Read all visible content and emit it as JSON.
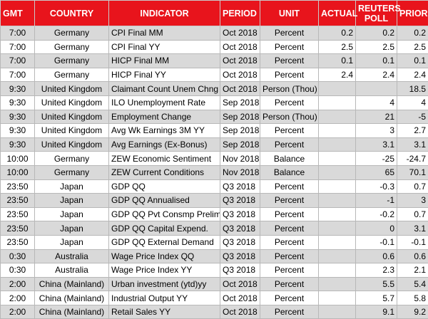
{
  "table": {
    "header": [
      "GMT",
      "COUNTRY",
      "INDICATOR",
      "PERIOD",
      "UNIT",
      "ACTUAL",
      "REUTERS POLL",
      "PRIOR"
    ],
    "rows": [
      [
        "7:00",
        "Germany",
        "CPI Final MM",
        "Oct 2018",
        "Percent",
        "0.2",
        "0.2",
        "0.2"
      ],
      [
        "7:00",
        "Germany",
        "CPI Final YY",
        "Oct 2018",
        "Percent",
        "2.5",
        "2.5",
        "2.5"
      ],
      [
        "7:00",
        "Germany",
        "HICP Final MM",
        "Oct 2018",
        "Percent",
        "0.1",
        "0.1",
        "0.1"
      ],
      [
        "7:00",
        "Germany",
        "HICP Final YY",
        "Oct 2018",
        "Percent",
        "2.4",
        "2.4",
        "2.4"
      ],
      [
        "9:30",
        "United Kingdom",
        "Claimant Count Unem Chng",
        "Oct 2018",
        "Person (Thou)",
        null,
        null,
        "18.5"
      ],
      [
        "9:30",
        "United Kingdom",
        "ILO Unemployment Rate",
        "Sep 2018",
        "Percent",
        null,
        "4",
        "4"
      ],
      [
        "9:30",
        "United Kingdom",
        "Employment Change",
        "Sep 2018",
        "Person (Thou)",
        null,
        "21",
        "-5"
      ],
      [
        "9:30",
        "United Kingdom",
        "Avg Wk Earnings 3M YY",
        "Sep 2018",
        "Percent",
        null,
        "3",
        "2.7"
      ],
      [
        "9:30",
        "United Kingdom",
        "Avg Earnings (Ex-Bonus)",
        "Sep 2018",
        "Percent",
        null,
        "3.1",
        "3.1"
      ],
      [
        "10:00",
        "Germany",
        "ZEW Economic Sentiment",
        "Nov 2018",
        "Balance",
        null,
        "-25",
        "-24.7"
      ],
      [
        "10:00",
        "Germany",
        "ZEW Current Conditions",
        "Nov 2018",
        "Balance",
        null,
        "65",
        "70.1"
      ],
      [
        "23:50",
        "Japan",
        "GDP QQ",
        "Q3 2018",
        "Percent",
        null,
        "-0.3",
        "0.7"
      ],
      [
        "23:50",
        "Japan",
        "GDP QQ Annualised",
        "Q3 2018",
        "Percent",
        null,
        "-1",
        "3"
      ],
      [
        "23:50",
        "Japan",
        "GDP QQ Pvt Consmp Prelim",
        "Q3 2018",
        "Percent",
        null,
        "-0.2",
        "0.7"
      ],
      [
        "23:50",
        "Japan",
        "GDP QQ Capital Expend.",
        "Q3 2018",
        "Percent",
        null,
        "0",
        "3.1"
      ],
      [
        "23:50",
        "Japan",
        "GDP QQ External Demand",
        "Q3 2018",
        "Percent",
        null,
        "-0.1",
        "-0.1"
      ],
      [
        "0:30",
        "Australia",
        "Wage Price Index QQ",
        "Q3 2018",
        "Percent",
        null,
        "0.6",
        "0.6"
      ],
      [
        "0:30",
        "Australia",
        "Wage Price Index YY",
        "Q3 2018",
        "Percent",
        null,
        "2.3",
        "2.1"
      ],
      [
        "2:00",
        "China (Mainland)",
        "Urban investment (ytd)yy",
        "Oct 2018",
        "Percent",
        null,
        "5.5",
        "5.4"
      ],
      [
        "2:00",
        "China (Mainland)",
        "Industrial Output YY",
        "Oct 2018",
        "Percent",
        null,
        "5.7",
        "5.8"
      ],
      [
        "2:00",
        "China (Mainland)",
        "Retail Sales YY",
        "Oct 2018",
        "Percent",
        null,
        "9.1",
        "9.2"
      ]
    ]
  }
}
